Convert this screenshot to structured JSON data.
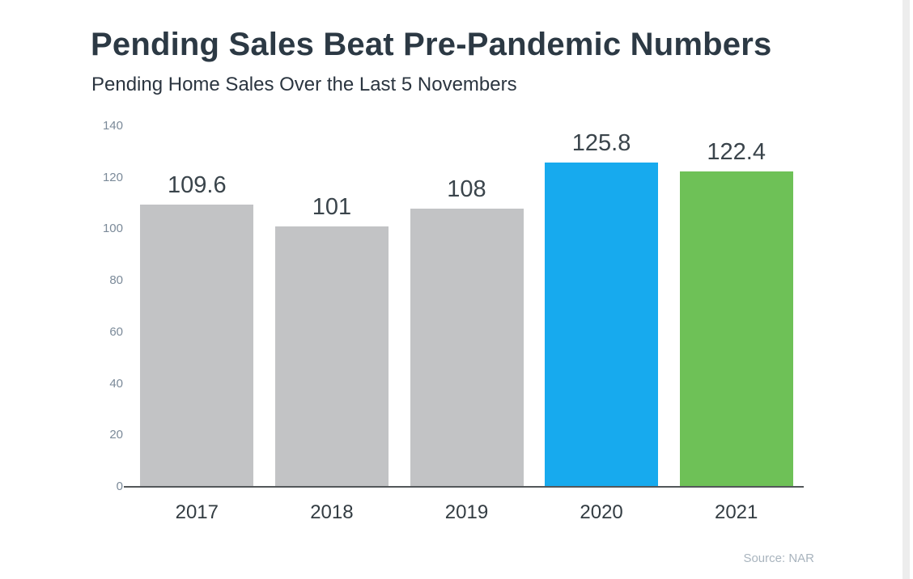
{
  "page": {
    "title": "Pending Sales Beat Pre-Pandemic Numbers",
    "subtitle": "Pending Home Sales Over the Last 5 Novembers",
    "source": "Source: NAR"
  },
  "colors": {
    "title_text": "#2c3944",
    "subtitle_text": "#2b3540",
    "bar_gray": "#c2c3c5",
    "bar_blue": "#17aaee",
    "bar_green": "#6ec157",
    "ytick_text": "#7b8a99",
    "value_label_text": "#3a444b",
    "xtick_text": "#333c42",
    "axis_line": "#53575a",
    "source_text": "#a9b4be"
  },
  "chart_data": {
    "type": "bar",
    "title": "Pending Sales Beat Pre-Pandemic Numbers",
    "subtitle": "Pending Home Sales Over the Last 5 Novembers",
    "categories": [
      "2017",
      "2018",
      "2019",
      "2020",
      "2021"
    ],
    "values": [
      109.6,
      101,
      108,
      125.8,
      122.4
    ],
    "value_labels": [
      "109.6",
      "101",
      "108",
      "125.8",
      "122.4"
    ],
    "bar_colors": [
      "#c2c3c5",
      "#c2c3c5",
      "#c2c3c5",
      "#17aaee",
      "#6ec157"
    ],
    "xlabel": "",
    "ylabel": "",
    "ylim": [
      0,
      140
    ],
    "yticks": [
      0,
      20,
      40,
      60,
      80,
      100,
      120,
      140
    ],
    "grid": false,
    "legend": false,
    "source": "Source: NAR"
  }
}
